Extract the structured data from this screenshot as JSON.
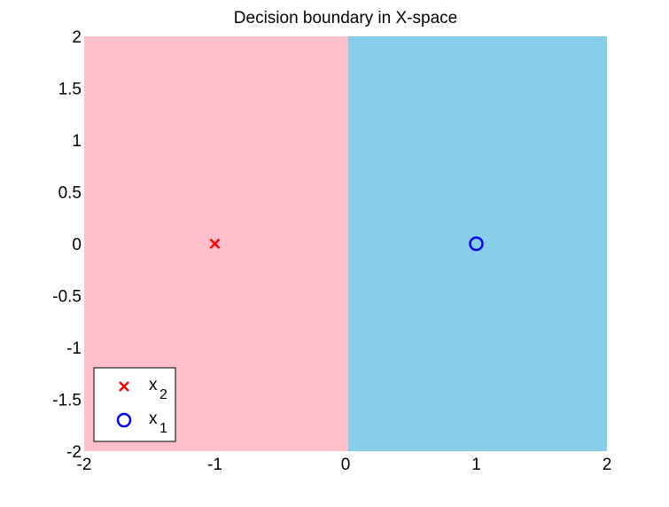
{
  "chart_data": {
    "type": "scatter",
    "title": "Decision boundary in X-space",
    "xlabel": "",
    "ylabel": "",
    "xlim": [
      -2,
      2
    ],
    "ylim": [
      -2,
      2
    ],
    "x_ticks": [
      -2,
      -1,
      0,
      1,
      2
    ],
    "y_ticks": [
      -2,
      -1.5,
      -1,
      -0.5,
      0,
      0.5,
      1,
      1.5,
      2
    ],
    "x_tick_labels": [
      "-2",
      "-1",
      "0",
      "1",
      "2"
    ],
    "y_tick_labels": [
      "-2",
      "-1.5",
      "-1",
      "-0.5",
      "0",
      "0.5",
      "1",
      "1.5",
      "2"
    ],
    "grid": false,
    "regions": [
      {
        "x_range": [
          -2,
          0.02
        ],
        "color": "#ffc0cb"
      },
      {
        "x_range": [
          0.02,
          2
        ],
        "color": "#87ceeb"
      }
    ],
    "series": [
      {
        "label": "x",
        "subscript": "2",
        "marker": "x",
        "color": "#ff0000",
        "points": [
          [
            -1,
            0
          ]
        ]
      },
      {
        "label": "x",
        "subscript": "1",
        "marker": "o",
        "color": "#0000ff",
        "points": [
          [
            1,
            0
          ]
        ]
      }
    ],
    "legend_position": "bottom-left"
  }
}
